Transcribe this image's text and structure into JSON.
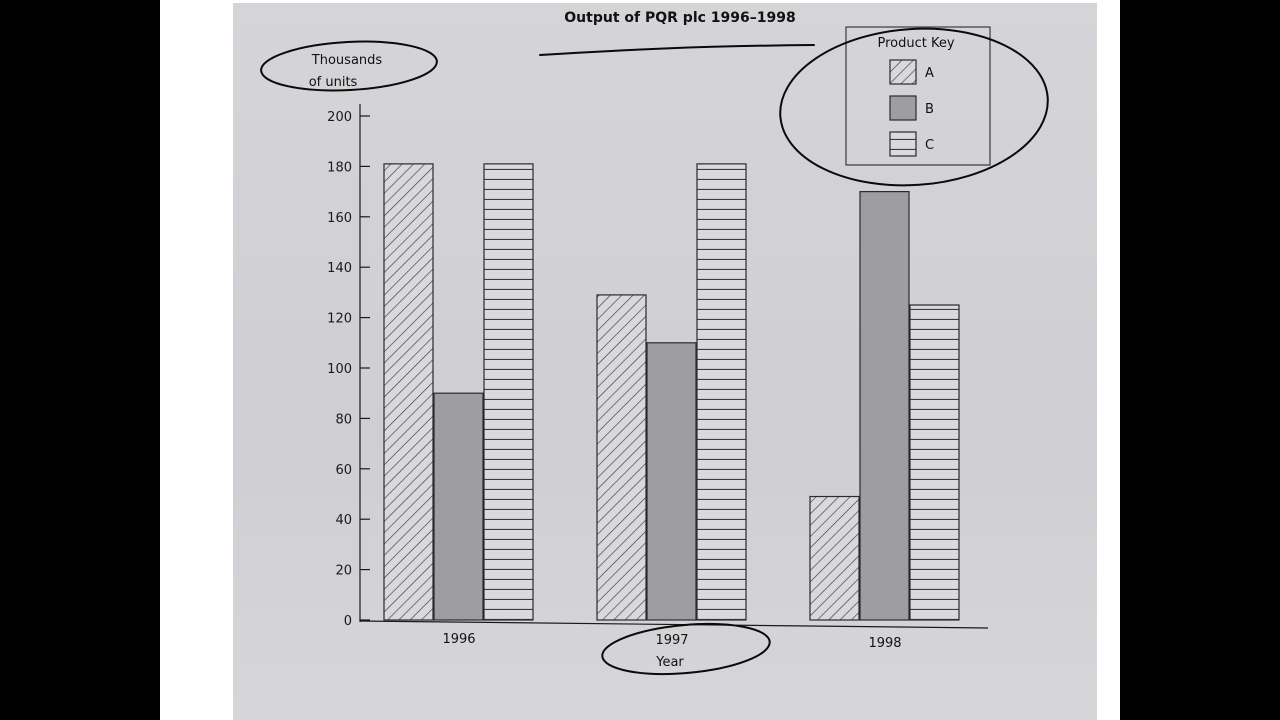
{
  "chart_data": {
    "type": "bar",
    "title": "Output of PQR plc 1996–1998",
    "ylabel_lines": [
      "Thousands",
      "of units"
    ],
    "xlabel": "Year",
    "categories": [
      "1996",
      "1997",
      "1998"
    ],
    "ylim": [
      0,
      200
    ],
    "yticks": [
      0,
      20,
      40,
      60,
      80,
      100,
      120,
      140,
      160,
      180,
      200
    ],
    "legend_title": "Product Key",
    "legend_position": "top-right",
    "grid": false,
    "series": [
      {
        "name": "A",
        "pattern": "diagonal-hatch",
        "values": [
          181,
          129,
          49
        ]
      },
      {
        "name": "B",
        "pattern": "solid-grey",
        "values": [
          90,
          110,
          170
        ]
      },
      {
        "name": "C",
        "pattern": "horizontal-stripes",
        "values": [
          181,
          181,
          125
        ]
      }
    ],
    "annotations": "hand-drawn pen circles around the y-axis label, the legend and the 1997 / Year label, plus an underline beneath the title"
  },
  "colors": {
    "page_background": "#000000",
    "slide": "#ffffff",
    "paper": "#d3d3d6",
    "bar_solid": "#9e9ea2",
    "bar_fill": "#d7d7da",
    "ink": "#141414"
  }
}
